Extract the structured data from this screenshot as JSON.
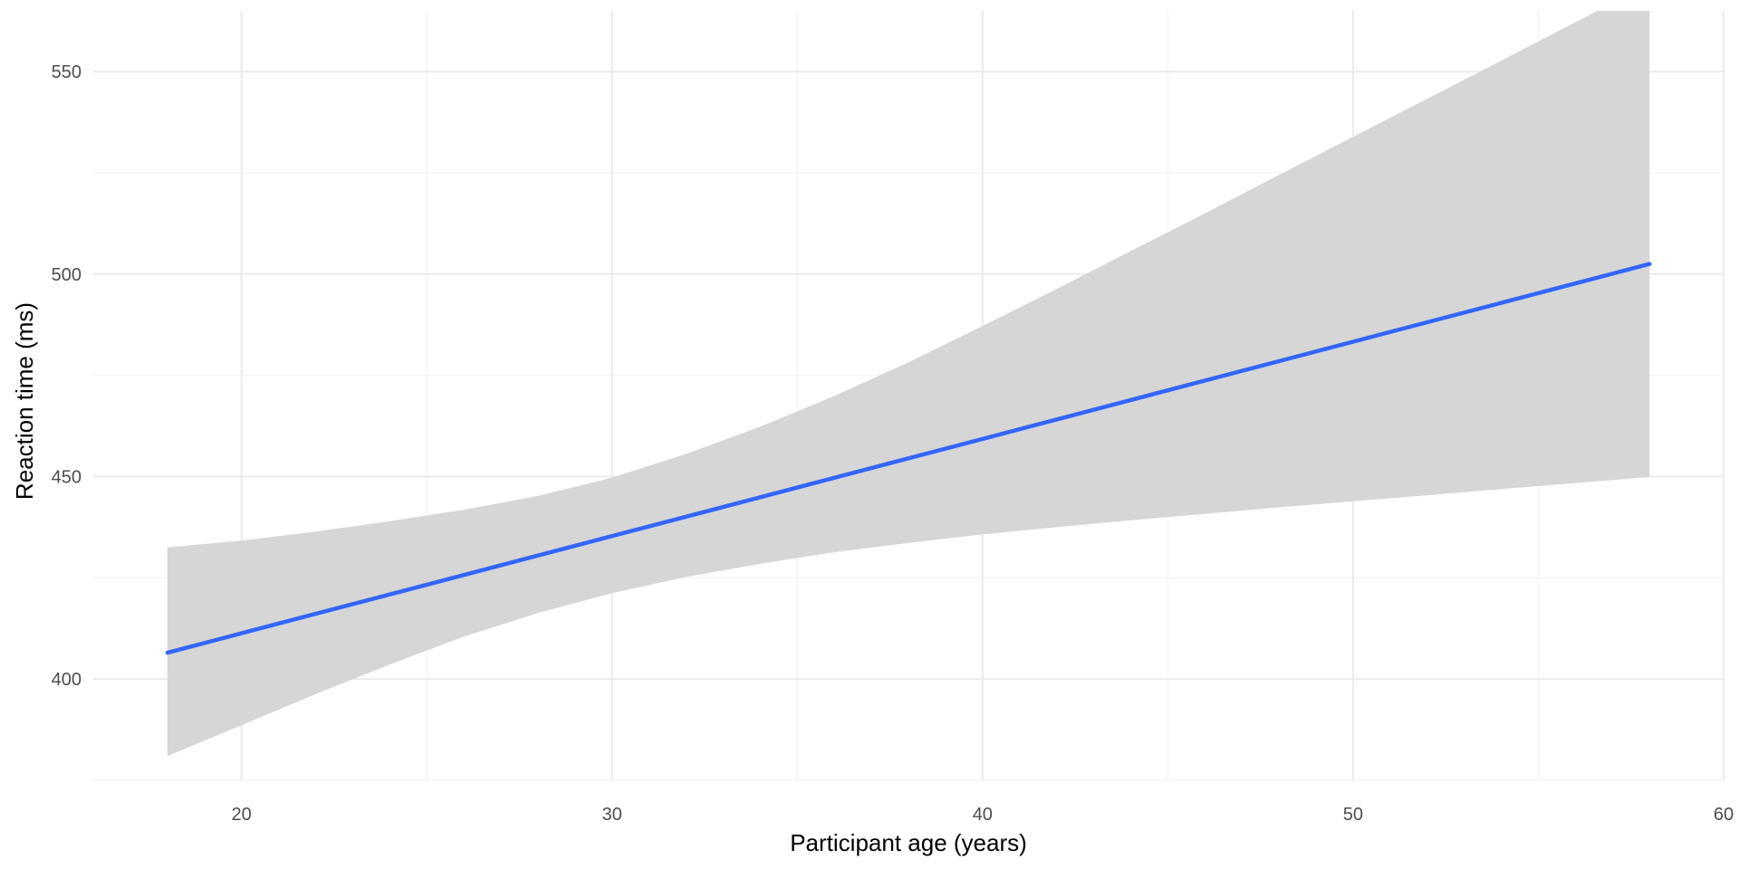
{
  "chart_data": {
    "type": "line",
    "title": "",
    "xlabel": "Participant age (years)",
    "ylabel": "Reaction time (ms)",
    "xlim": [
      16,
      60
    ],
    "ylim": [
      375,
      565
    ],
    "x_ticks": [
      20,
      30,
      40,
      50,
      60
    ],
    "y_ticks": [
      400,
      450,
      500,
      550
    ],
    "x_minor": [
      25,
      35,
      45,
      55
    ],
    "y_minor": [
      375,
      425,
      475,
      525
    ],
    "grid": true,
    "legend": "none",
    "colors": {
      "line": "#3366ff",
      "ribbon": "#d6d6d6",
      "grid_major": "#ebebeb",
      "grid_minor": "#f5f5f5"
    },
    "series": [
      {
        "x": [
          18,
          20,
          22,
          24,
          26,
          28,
          30,
          32,
          34,
          36,
          38,
          40,
          42,
          44,
          46,
          48,
          50,
          52,
          54,
          56,
          58
        ],
        "y": [
          406.5,
          411.3,
          416.1,
          420.9,
          425.7,
          430.5,
          435.3,
          440.1,
          444.9,
          449.7,
          454.5,
          459.3,
          464.1,
          468.9,
          473.7,
          478.5,
          483.3,
          488.1,
          492.9,
          497.7,
          502.5
        ],
        "ymin": [
          381.0,
          388.6,
          396.3,
          403.6,
          410.5,
          416.3,
          421.2,
          425.2,
          428.5,
          431.3,
          433.6,
          435.7,
          437.5,
          439.2,
          440.8,
          442.4,
          443.9,
          445.4,
          446.9,
          448.4,
          449.9
        ],
        "ymax": [
          432.5,
          434.2,
          436.4,
          439.0,
          441.8,
          445.2,
          449.7,
          455.6,
          462.3,
          469.9,
          478.2,
          487.2,
          496.3,
          505.7,
          515.0,
          524.5,
          533.9,
          543.3,
          552.7,
          562.2,
          571.6
        ]
      }
    ]
  }
}
